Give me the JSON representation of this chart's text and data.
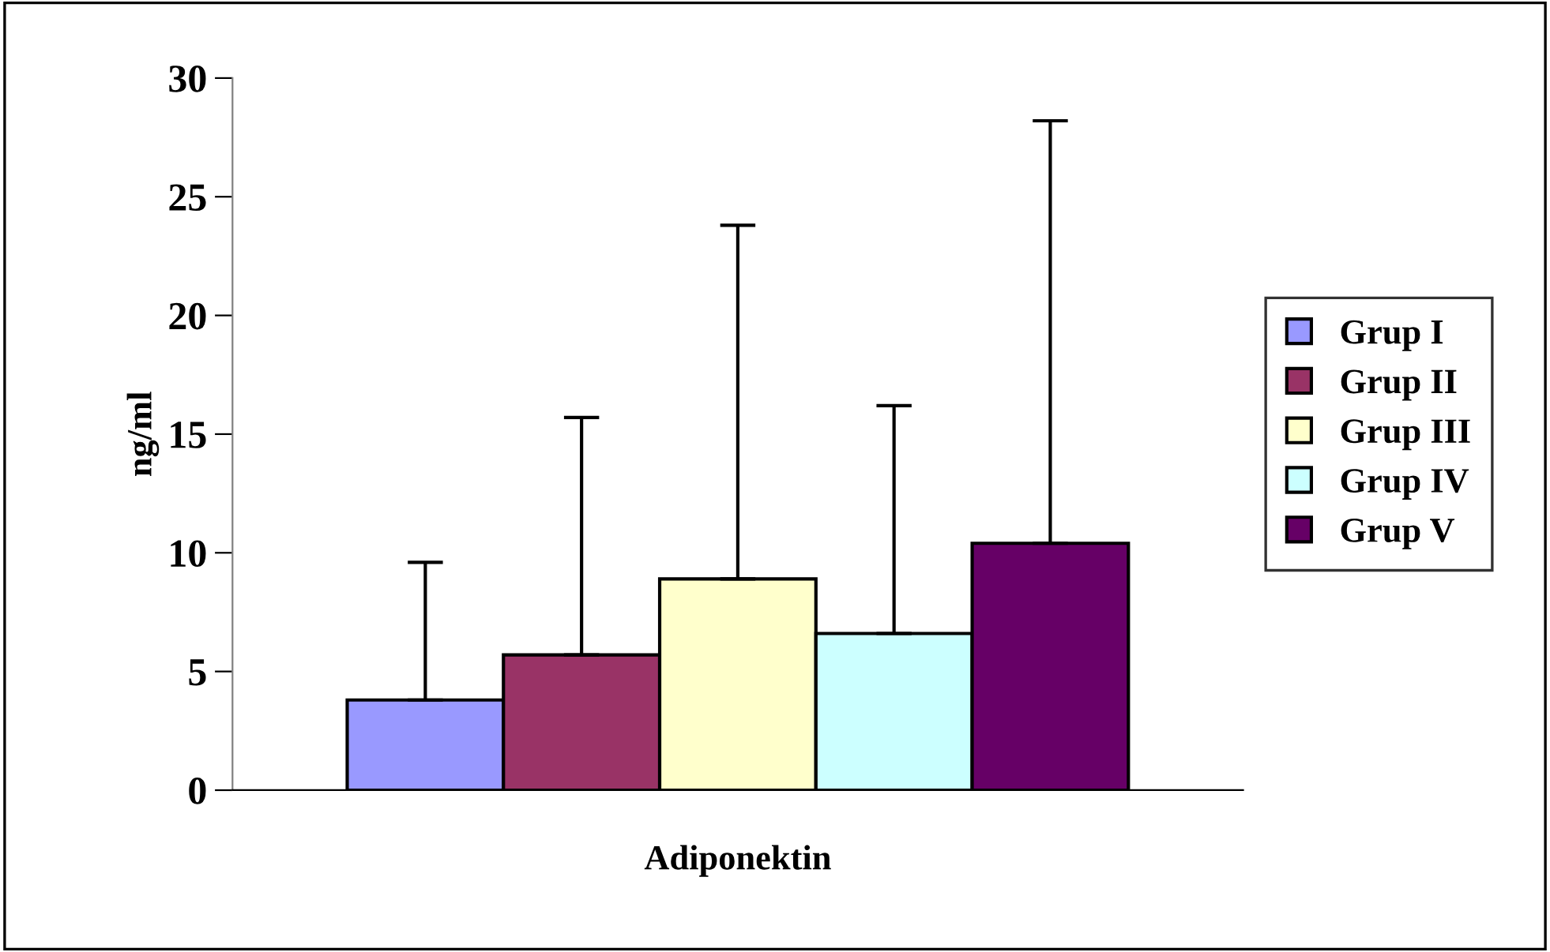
{
  "chart_data": {
    "type": "bar",
    "ylabel": "ng/ml",
    "categories": [
      "Adiponektin"
    ],
    "series": [
      {
        "name": "Grup I",
        "color": "#9999ff",
        "values": [
          3.8
        ],
        "errors": [
          [
            3.8,
            9.6
          ]
        ]
      },
      {
        "name": "Grup II",
        "color": "#993366",
        "values": [
          5.7
        ],
        "errors": [
          [
            5.7,
            15.7
          ]
        ]
      },
      {
        "name": "Grup III",
        "color": "#ffffcc",
        "values": [
          8.9
        ],
        "errors": [
          [
            8.9,
            23.8
          ]
        ]
      },
      {
        "name": "Grup IV",
        "color": "#ccffff",
        "values": [
          6.6
        ],
        "errors": [
          [
            6.6,
            16.2
          ]
        ]
      },
      {
        "name": "Grup V",
        "color": "#660066",
        "values": [
          10.4
        ],
        "errors": [
          [
            10.4,
            28.2
          ]
        ]
      }
    ],
    "ylim": [
      0,
      30
    ],
    "yticks": [
      0,
      5,
      10,
      15,
      20,
      25,
      30
    ],
    "grid": false,
    "legend": "right"
  }
}
